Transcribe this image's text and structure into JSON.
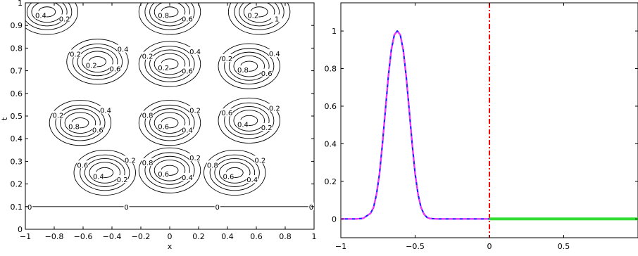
{
  "chart_data": [
    {
      "type": "contour",
      "xlabel": "x",
      "ylabel": "t",
      "xlim": [
        -1,
        1
      ],
      "ylim": [
        0,
        1
      ],
      "x_ticks": [
        "−1",
        "−0.8",
        "−0.6",
        "−0.4",
        "−0.2",
        "0",
        "0.2",
        "0.4",
        "0.6",
        "0.8",
        "1"
      ],
      "y_ticks": [
        "0",
        "0.1",
        "0.2",
        "0.3",
        "0.4",
        "0.5",
        "0.6",
        "0.7",
        "0.8",
        "0.9",
        "1"
      ],
      "contour_levels": [
        0.2,
        0.4,
        0.6,
        0.8,
        1
      ],
      "zero_level_line_t": 0.1,
      "zero_labels": [
        "0",
        "0",
        "0",
        "0"
      ],
      "line_color": "#000000",
      "bumps": [
        {
          "x": -0.85,
          "t": 0.96,
          "peak": 1
        },
        {
          "x": 0.0,
          "t": 0.96,
          "peak": 1
        },
        {
          "x": 0.62,
          "t": 0.96,
          "peak": 1
        },
        {
          "x": -0.5,
          "t": 0.74,
          "peak": 1
        },
        {
          "x": 0.0,
          "t": 0.73,
          "peak": 1
        },
        {
          "x": 0.55,
          "t": 0.72,
          "peak": 1
        },
        {
          "x": -0.62,
          "t": 0.47,
          "peak": 1
        },
        {
          "x": 0.0,
          "t": 0.47,
          "peak": 1
        },
        {
          "x": 0.55,
          "t": 0.48,
          "peak": 1
        },
        {
          "x": -0.45,
          "t": 0.25,
          "peak": 1
        },
        {
          "x": 0.0,
          "t": 0.26,
          "peak": 1
        },
        {
          "x": 0.45,
          "t": 0.25,
          "peak": 1
        }
      ],
      "contour_label_texts": [
        "0.2",
        "0.4",
        "0.6",
        "0.8",
        "1",
        "0.2",
        "0.4",
        "0.6",
        "0.2",
        "0.2",
        "0.4",
        "0.6",
        "0.2",
        "0.2",
        "0.4",
        "0.6",
        "0.8",
        "0.2",
        "0.4",
        "0.6",
        "0.8",
        "0.2",
        "0.2",
        "0.4",
        "0.6",
        "0.8",
        "0.2",
        "0.2",
        "0.4",
        "0.6",
        "0.2",
        "0.2",
        "0.4",
        "0.6",
        "0.2",
        "0.4",
        "0.6",
        "0.8",
        "0.2",
        "0.4",
        "0.6",
        "0.8",
        "0.2",
        "0.6",
        "0.2",
        "0.4",
        "0.2",
        "0.4"
      ]
    },
    {
      "type": "line",
      "xlim": [
        -1,
        1
      ],
      "ylim": [
        -0.1,
        1.15
      ],
      "x_ticks": [
        -1,
        -0.5,
        0,
        0.5
      ],
      "x_tick_labels": [
        "−1",
        "−0.5",
        "0",
        "0.5"
      ],
      "y_ticks": [
        0,
        0.2,
        0.4,
        0.6,
        0.8,
        1
      ],
      "y_tick_labels": [
        "0",
        "0.2",
        "0.4",
        "0.6",
        "0.8",
        "1"
      ],
      "vline_x": 0,
      "vline_color": "#ff0000",
      "series": [
        {
          "color": "#1f1fff",
          "style": "solid",
          "x": [
            -1,
            -0.95,
            -0.9,
            -0.85,
            -0.8,
            -0.78,
            -0.76,
            -0.74,
            -0.72,
            -0.7,
            -0.68,
            -0.66,
            -0.64,
            -0.62,
            -0.6,
            -0.58,
            -0.56,
            -0.54,
            -0.52,
            -0.5,
            -0.48,
            -0.46,
            -0.44,
            -0.42,
            -0.4,
            -0.35,
            -0.3,
            -0.2,
            -0.1,
            0
          ],
          "y": [
            0,
            0,
            0,
            0.003,
            0.03,
            0.06,
            0.13,
            0.24,
            0.4,
            0.58,
            0.76,
            0.9,
            0.98,
            1.0,
            0.98,
            0.9,
            0.76,
            0.58,
            0.4,
            0.24,
            0.13,
            0.06,
            0.025,
            0.008,
            0.002,
            0,
            0,
            0,
            0,
            0
          ]
        },
        {
          "color": "#ff33ff",
          "style": "dashed",
          "x": [
            -1,
            -0.95,
            -0.9,
            -0.85,
            -0.8,
            -0.78,
            -0.76,
            -0.74,
            -0.72,
            -0.7,
            -0.68,
            -0.66,
            -0.64,
            -0.62,
            -0.6,
            -0.58,
            -0.56,
            -0.54,
            -0.52,
            -0.5,
            -0.48,
            -0.46,
            -0.44,
            -0.42,
            -0.4,
            -0.35,
            -0.3,
            -0.2,
            -0.1,
            0
          ],
          "y": [
            0,
            0,
            0,
            0.003,
            0.03,
            0.06,
            0.13,
            0.24,
            0.4,
            0.58,
            0.76,
            0.9,
            0.98,
            1.0,
            0.98,
            0.9,
            0.76,
            0.58,
            0.4,
            0.24,
            0.13,
            0.06,
            0.025,
            0.008,
            0.002,
            0,
            0,
            0,
            0,
            0
          ]
        },
        {
          "color": "#33dd33",
          "style": "thick",
          "x": [
            0,
            1
          ],
          "y": [
            0,
            0
          ]
        }
      ]
    }
  ]
}
